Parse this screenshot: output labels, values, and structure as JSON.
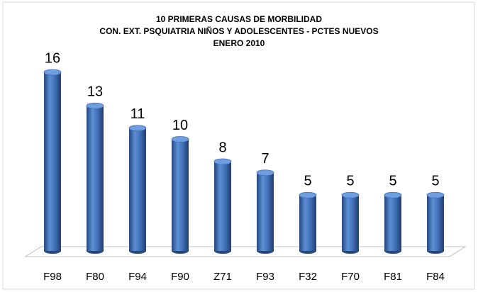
{
  "chart_data": {
    "type": "bar",
    "title": [
      "10 PRIMERAS CAUSAS DE MORBILIDAD",
      "CON. EXT. PSQUIATRIA NIÑOS Y ADOLESCENTES - PCTES NUEVOS",
      "ENERO 2010"
    ],
    "categories": [
      "F98",
      "F80",
      "F94",
      "F90",
      "Z71",
      "F93",
      "F32",
      "F70",
      "F81",
      "F84"
    ],
    "values": [
      16,
      13,
      11,
      10,
      8,
      7,
      5,
      5,
      5,
      5
    ],
    "color": "#3f6fb5"
  }
}
